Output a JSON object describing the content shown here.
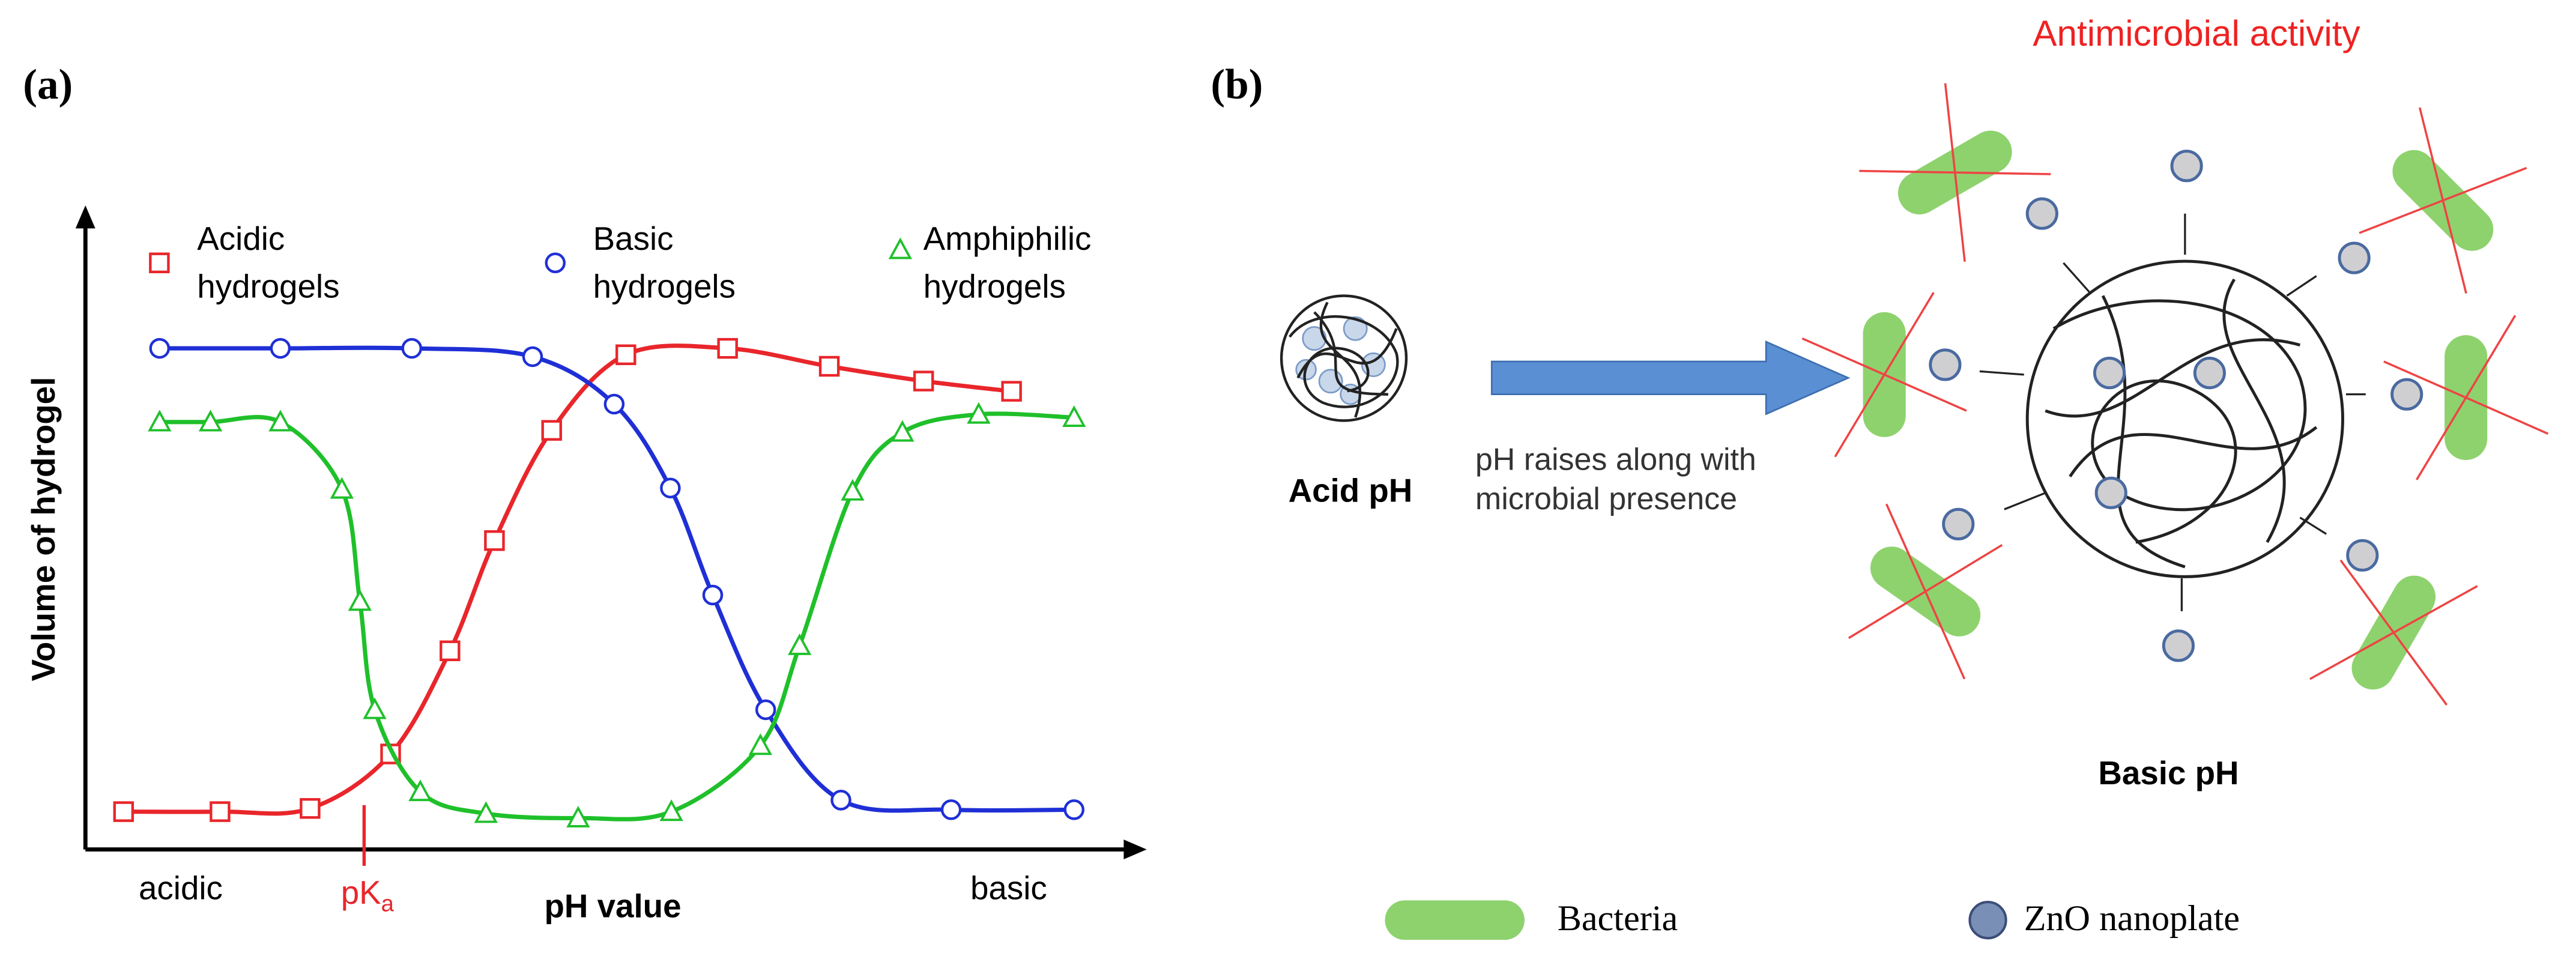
{
  "chart_data": {
    "type": "line",
    "panel_label": "(a)",
    "y_label": "Volume of hydrogel",
    "x_label": "pH value",
    "x_end_labels": [
      "acidic",
      "basic"
    ],
    "pka_label": {
      "main": "pK",
      "sub": "a"
    },
    "pka_x": 26.3,
    "xlim": [
      0,
      100
    ],
    "ylim": [
      0,
      100
    ],
    "series": [
      {
        "name": "Acidic hydrogels",
        "color": "#e8262b",
        "marker": "square",
        "x": [
          3.6,
          12.7,
          21.2,
          28.8,
          34.4,
          38.6,
          44.0,
          51.0,
          60.6,
          70.2,
          79.1,
          87.4
        ],
        "values": [
          5.9,
          5.9,
          6.4,
          14.9,
          31.0,
          48.2,
          65.4,
          77.2,
          78.2,
          75.4,
          73.1,
          71.5
        ]
      },
      {
        "name": "Basic hydrogels",
        "color": "#1f2fd6",
        "marker": "circle",
        "x": [
          7.0,
          18.4,
          30.8,
          42.2,
          49.9,
          55.2,
          59.2,
          64.2,
          71.3,
          81.7,
          93.3
        ],
        "values": [
          78.2,
          78.2,
          78.2,
          76.9,
          69.5,
          56.4,
          39.7,
          21.8,
          7.7,
          6.2,
          6.2
        ]
      },
      {
        "name": "Amphiphilic hydrogels",
        "color": "#1fc02a",
        "marker": "triangle",
        "x": [
          7.0,
          11.8,
          18.4,
          24.2,
          25.9,
          27.3,
          31.6,
          37.8,
          46.5,
          55.3,
          63.7,
          67.4,
          72.4,
          77.1,
          84.3,
          93.3
        ],
        "values": [
          66.7,
          66.7,
          66.7,
          56.2,
          38.7,
          21.8,
          9.0,
          5.6,
          4.9,
          5.9,
          16.2,
          31.8,
          55.9,
          65.1,
          67.9,
          67.4
        ]
      }
    ]
  },
  "diagram": {
    "panel_label": "(b)",
    "title": "Antimicrobial activity",
    "acid_label": "Acid pH",
    "arrow_text": [
      "pH raises along with",
      "microbial presence"
    ],
    "basic_label": "Basic pH",
    "legend": [
      "Bacteria",
      "ZnO nanoplate"
    ]
  }
}
